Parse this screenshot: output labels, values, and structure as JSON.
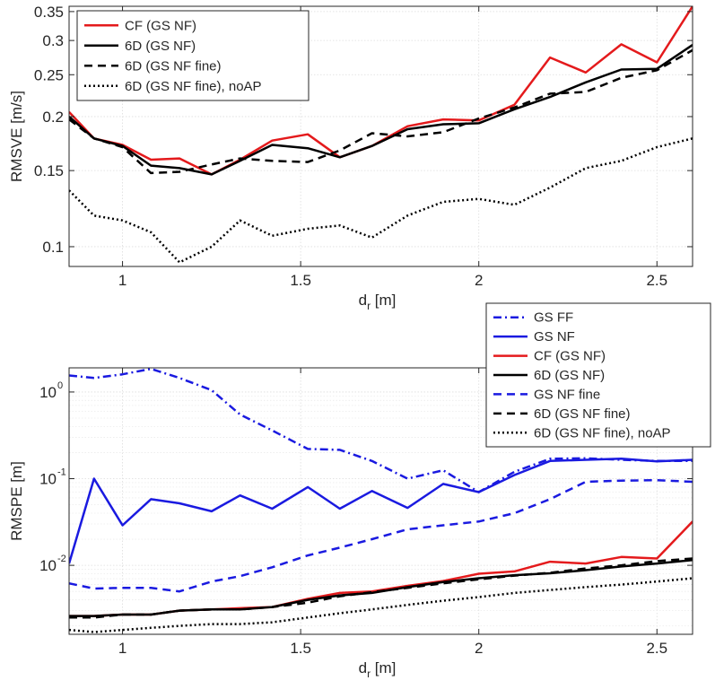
{
  "colors": {
    "red": "#e41a1c",
    "black": "#000000",
    "blue": "#1a1ae0",
    "grid": "#dcdcdc",
    "text": "#262626"
  },
  "chart_data": [
    {
      "type": "line",
      "title": "",
      "xlabel_main": "d",
      "xlabel_sub": "r",
      "xlabel_unit": "[m]",
      "ylabel": "RMSVE [m/s]",
      "yscale": "log",
      "xlim": [
        0.85,
        2.6
      ],
      "ylim": [
        0.09,
        0.36
      ],
      "xticks": [
        1,
        1.5,
        2,
        2.5
      ],
      "xtick_labels": [
        "1",
        "1.5",
        "2",
        "2.5"
      ],
      "yticks": [
        0.1,
        0.15,
        0.2,
        0.25,
        0.3,
        0.35
      ],
      "ytick_labels": [
        "0.1",
        "0.15",
        "0.2",
        "0.25",
        "0.3",
        "0.35"
      ],
      "legend_position": "top-left",
      "x": [
        0.85,
        0.92,
        1.0,
        1.08,
        1.16,
        1.25,
        1.33,
        1.42,
        1.52,
        1.61,
        1.7,
        1.8,
        1.9,
        2.0,
        2.1,
        2.2,
        2.3,
        2.4,
        2.5,
        2.6
      ],
      "series": [
        {
          "name": "CF (GS NF)",
          "color": "red",
          "dash": "solid",
          "values": [
            0.205,
            0.178,
            0.172,
            0.159,
            0.16,
            0.147,
            0.159,
            0.176,
            0.182,
            0.161,
            0.171,
            0.19,
            0.197,
            0.196,
            0.213,
            0.274,
            0.253,
            0.294,
            0.267,
            0.36
          ]
        },
        {
          "name": "6D (GS NF)",
          "color": "black",
          "dash": "solid",
          "values": [
            0.2,
            0.178,
            0.171,
            0.154,
            0.152,
            0.147,
            0.158,
            0.172,
            0.169,
            0.161,
            0.171,
            0.187,
            0.192,
            0.193,
            0.208,
            0.222,
            0.24,
            0.257,
            0.258,
            0.293
          ]
        },
        {
          "name": "6D (GS NF fine)",
          "color": "black",
          "dash": "dashed",
          "values": [
            0.197,
            0.178,
            0.17,
            0.148,
            0.149,
            0.155,
            0.16,
            0.158,
            0.157,
            0.167,
            0.183,
            0.18,
            0.184,
            0.198,
            0.21,
            0.226,
            0.228,
            0.246,
            0.256,
            0.285
          ]
        },
        {
          "name": "6D (GS NF fine), noAP",
          "color": "black",
          "dash": "dotted",
          "values": [
            0.135,
            0.118,
            0.115,
            0.108,
            0.092,
            0.1,
            0.115,
            0.106,
            0.11,
            0.112,
            0.105,
            0.118,
            0.127,
            0.129,
            0.125,
            0.137,
            0.152,
            0.158,
            0.17,
            0.178
          ]
        }
      ]
    },
    {
      "type": "line",
      "title": "",
      "xlabel_main": "d",
      "xlabel_sub": "r",
      "xlabel_unit": "[m]",
      "ylabel": "RMSPE [m]",
      "yscale": "log",
      "xlim": [
        0.85,
        2.6
      ],
      "ylim": [
        0.0016,
        1.9
      ],
      "xticks": [
        1,
        1.5,
        2,
        2.5
      ],
      "xtick_labels": [
        "1",
        "1.5",
        "2",
        "2.5"
      ],
      "yticks": [
        0.01,
        0.1,
        1
      ],
      "ytick_labels": [
        [
          "10",
          "-2"
        ],
        [
          "10",
          "-1"
        ],
        [
          "10",
          "0"
        ]
      ],
      "legend_position": "top-right",
      "x": [
        0.85,
        0.92,
        1.0,
        1.08,
        1.16,
        1.25,
        1.33,
        1.42,
        1.52,
        1.61,
        1.7,
        1.8,
        1.9,
        2.0,
        2.1,
        2.2,
        2.3,
        2.4,
        2.5,
        2.6
      ],
      "series": [
        {
          "name": "GS FF",
          "color": "blue",
          "dash": "dashdot",
          "values": [
            1.55,
            1.45,
            1.6,
            1.85,
            1.45,
            1.05,
            0.55,
            0.36,
            0.22,
            0.215,
            0.16,
            0.1,
            0.125,
            0.07,
            0.12,
            0.17,
            0.172,
            0.165,
            0.16,
            0.16
          ]
        },
        {
          "name": "GS NF",
          "color": "blue",
          "dash": "solid",
          "values": [
            0.0105,
            0.1,
            0.029,
            0.058,
            0.052,
            0.042,
            0.064,
            0.045,
            0.08,
            0.045,
            0.072,
            0.046,
            0.087,
            0.07,
            0.11,
            0.16,
            0.165,
            0.17,
            0.158,
            0.165
          ]
        },
        {
          "name": "CF (GS NF)",
          "color": "red",
          "dash": "solid",
          "values": [
            0.0026,
            0.0026,
            0.0027,
            0.0027,
            0.003,
            0.0031,
            0.0032,
            0.0033,
            0.0041,
            0.0048,
            0.005,
            0.0058,
            0.0066,
            0.008,
            0.0085,
            0.011,
            0.0105,
            0.0125,
            0.012,
            0.032
          ]
        },
        {
          "name": "6D (GS NF)",
          "color": "black",
          "dash": "solid",
          "values": [
            0.0026,
            0.0026,
            0.0027,
            0.0027,
            0.003,
            0.0031,
            0.0031,
            0.0033,
            0.004,
            0.0045,
            0.0048,
            0.0056,
            0.0064,
            0.0071,
            0.0077,
            0.0081,
            0.0088,
            0.0097,
            0.0105,
            0.0115
          ]
        },
        {
          "name": "GS NF fine",
          "color": "blue",
          "dash": "dashed",
          "values": [
            0.0062,
            0.0054,
            0.0055,
            0.0055,
            0.005,
            0.0065,
            0.0075,
            0.0095,
            0.013,
            0.016,
            0.02,
            0.026,
            0.029,
            0.032,
            0.04,
            0.058,
            0.092,
            0.095,
            0.096,
            0.092
          ]
        },
        {
          "name": "6D (GS NF fine)",
          "color": "black",
          "dash": "dashed",
          "values": [
            0.0025,
            0.0025,
            0.0027,
            0.0027,
            0.003,
            0.0031,
            0.0031,
            0.0033,
            0.0037,
            0.0044,
            0.0049,
            0.0055,
            0.0062,
            0.0069,
            0.0076,
            0.0082,
            0.0092,
            0.01,
            0.0112,
            0.012
          ]
        },
        {
          "name": "6D (GS NF fine), noAP",
          "color": "black",
          "dash": "dotted",
          "values": [
            0.0018,
            0.0017,
            0.0018,
            0.0019,
            0.002,
            0.0021,
            0.0021,
            0.0022,
            0.0025,
            0.0028,
            0.0031,
            0.0035,
            0.0039,
            0.0043,
            0.0048,
            0.0052,
            0.0056,
            0.006,
            0.0065,
            0.0071
          ]
        }
      ]
    }
  ]
}
